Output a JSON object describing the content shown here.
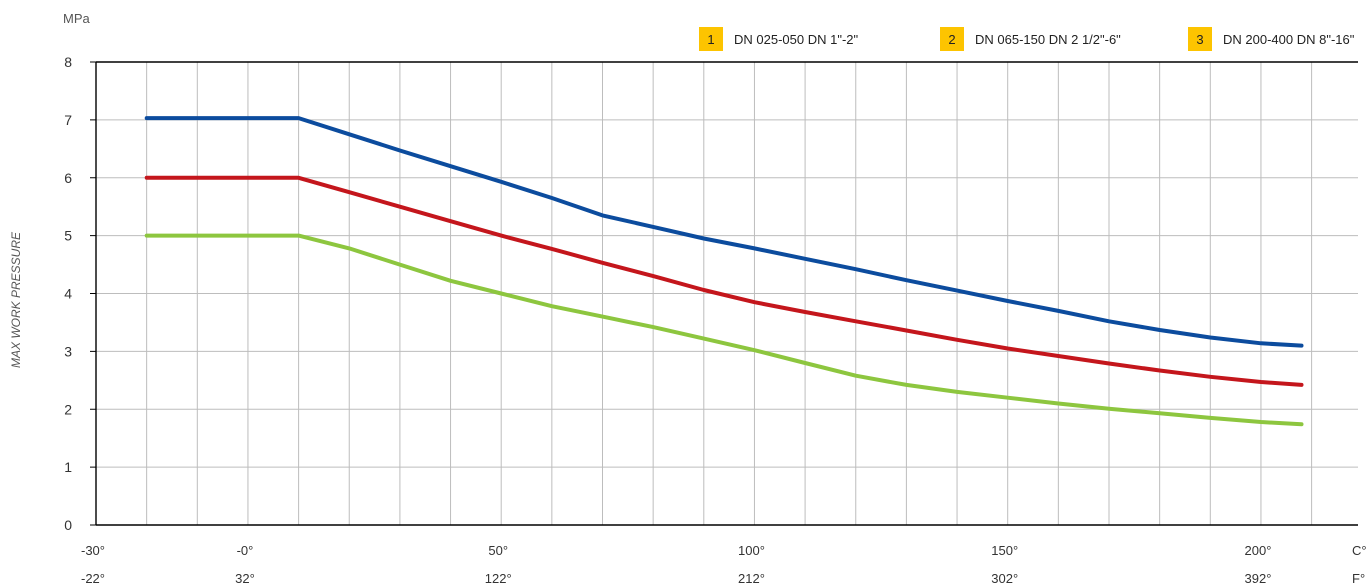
{
  "chart_data": {
    "type": "line",
    "ylabel": "MAX WORK PRESSURE",
    "y_unit": "MPa",
    "x_unit_c": "C°",
    "x_unit_f": "F°",
    "ylim": [
      0,
      8
    ],
    "y_ticks": [
      "0",
      "1",
      "2",
      "3",
      "4",
      "5",
      "6",
      "7",
      "8"
    ],
    "xlim": [
      -30,
      210
    ],
    "x_ticks_c": [
      {
        "value": -30,
        "label": "-30°"
      },
      {
        "value": 0,
        "label": "-0°"
      },
      {
        "value": 50,
        "label": "50°"
      },
      {
        "value": 100,
        "label": "100°"
      },
      {
        "value": 150,
        "label": "150°"
      },
      {
        "value": 200,
        "label": "200°"
      }
    ],
    "x_ticks_f": [
      {
        "value": -30,
        "label": "-22°"
      },
      {
        "value": 0,
        "label": "32°"
      },
      {
        "value": 50,
        "label": "122°"
      },
      {
        "value": 100,
        "label": "212°"
      },
      {
        "value": 150,
        "label": "302°"
      },
      {
        "value": 200,
        "label": "392°"
      }
    ],
    "grid": true,
    "legend_position": "top",
    "series": [
      {
        "num": "1",
        "name": "DN 025-050  DN 1\"-2\"",
        "color": "#0c4c9e",
        "x": [
          -20,
          10,
          20,
          30,
          40,
          50,
          60,
          70,
          80,
          90,
          100,
          110,
          120,
          130,
          140,
          150,
          160,
          170,
          180,
          190,
          200,
          208
        ],
        "y": [
          7.03,
          7.03,
          6.75,
          6.47,
          6.2,
          5.93,
          5.65,
          5.35,
          5.15,
          4.95,
          4.78,
          4.6,
          4.42,
          4.23,
          4.05,
          3.87,
          3.7,
          3.52,
          3.37,
          3.24,
          3.14,
          3.1
        ]
      },
      {
        "num": "2",
        "name": "DN 065-150  DN 2 1/2\"-6\"",
        "color": "#c4161c",
        "x": [
          -20,
          10,
          20,
          30,
          40,
          50,
          60,
          70,
          80,
          90,
          100,
          110,
          120,
          130,
          140,
          150,
          160,
          170,
          180,
          190,
          200,
          208
        ],
        "y": [
          6.0,
          6.0,
          5.75,
          5.5,
          5.25,
          5.0,
          4.77,
          4.53,
          4.3,
          4.06,
          3.85,
          3.68,
          3.52,
          3.36,
          3.2,
          3.05,
          2.92,
          2.79,
          2.67,
          2.56,
          2.47,
          2.42
        ]
      },
      {
        "num": "3",
        "name": "DN 200-400  DN 8\"-16\"",
        "color": "#8dc63f",
        "x": [
          -20,
          10,
          20,
          30,
          40,
          50,
          60,
          70,
          80,
          90,
          100,
          110,
          120,
          130,
          140,
          150,
          160,
          170,
          180,
          190,
          200,
          208
        ],
        "y": [
          5.0,
          5.0,
          4.78,
          4.5,
          4.22,
          4.0,
          3.78,
          3.6,
          3.42,
          3.22,
          3.02,
          2.8,
          2.58,
          2.42,
          2.3,
          2.2,
          2.1,
          2.01,
          1.93,
          1.85,
          1.78,
          1.74
        ]
      }
    ]
  },
  "colors": {
    "legend_badge": "#fdc400",
    "grid": "#bdbdbd",
    "axis": "#000000"
  }
}
